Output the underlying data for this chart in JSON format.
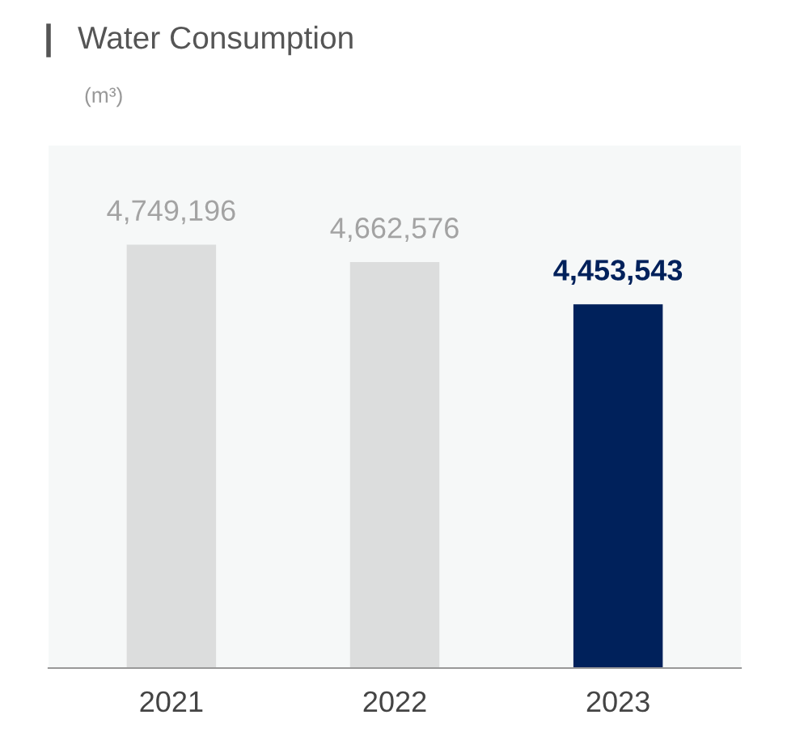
{
  "chart_data": {
    "type": "bar",
    "title": "Water Consumption",
    "subtitle": "(m³)",
    "categories": [
      "2021",
      "2022",
      "2023"
    ],
    "values": [
      4749196,
      4662576,
      4453543
    ],
    "colors": [
      "#dcdddd",
      "#dcdddd",
      "#00215b"
    ],
    "value_labels": [
      "4,749,196",
      "4,662,576",
      "4,453,543"
    ],
    "ylim": [
      2650000,
      5240000
    ],
    "tick_labels": "x",
    "grid": false,
    "legend": false
  }
}
